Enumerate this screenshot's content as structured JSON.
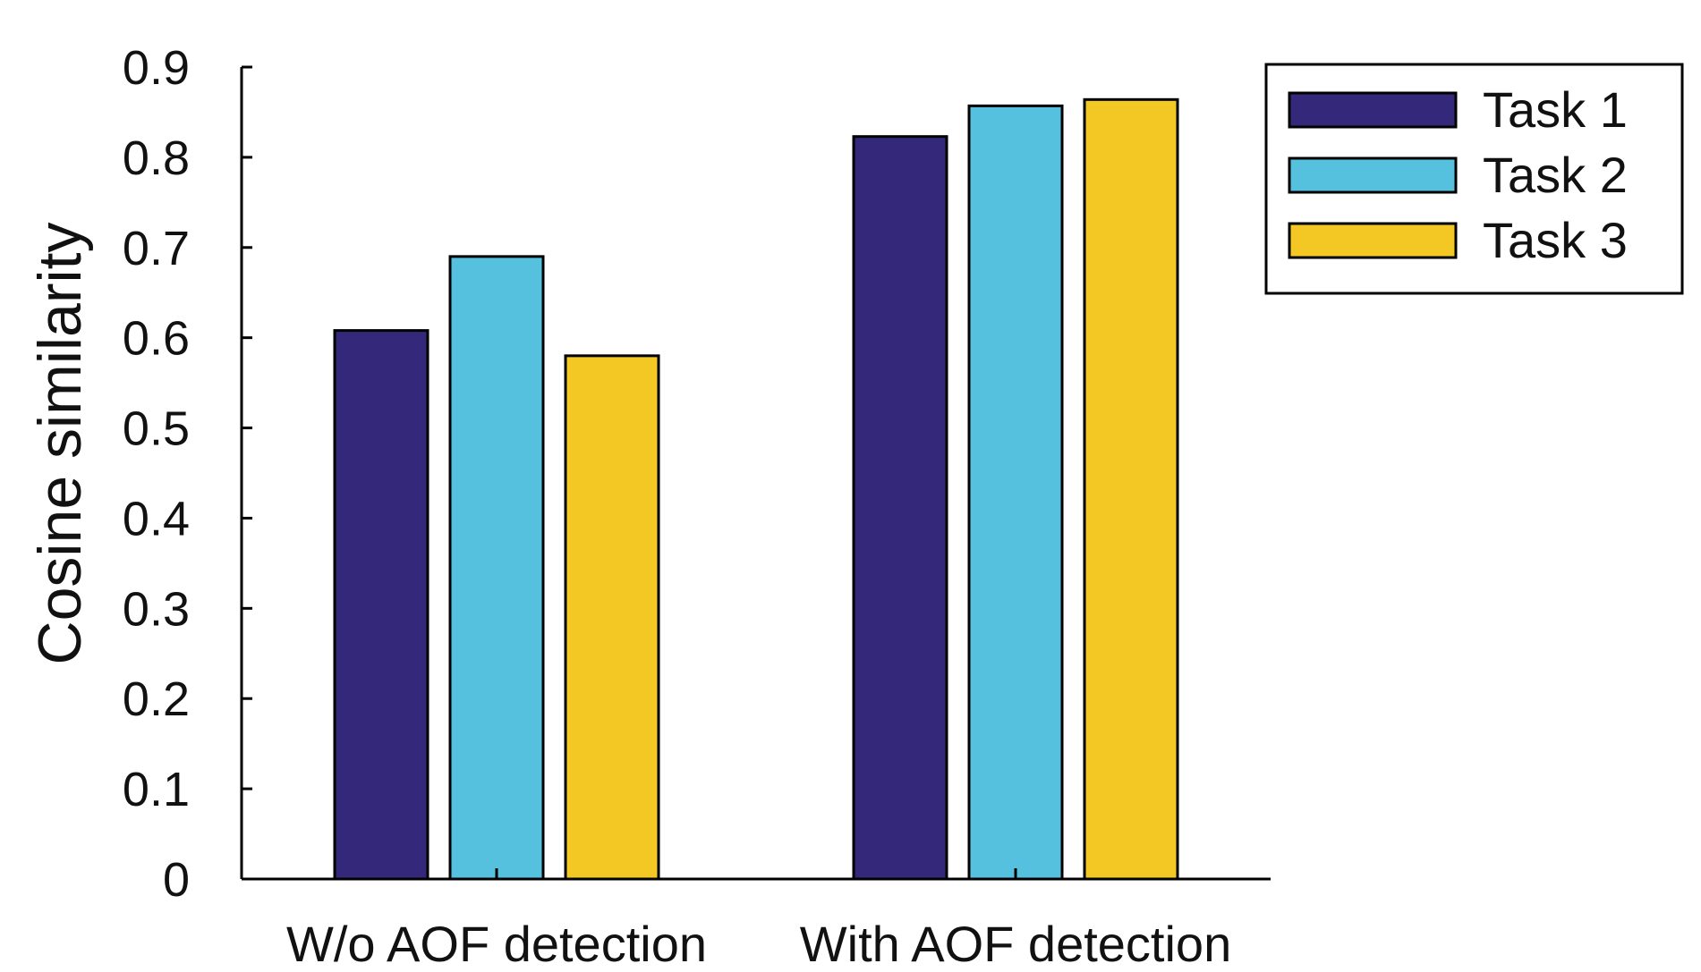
{
  "chart_data": {
    "type": "bar",
    "title": "",
    "xlabel": "",
    "ylabel": "Cosine similarity",
    "ylim": [
      0,
      0.9
    ],
    "yticks": [
      {
        "value": 0,
        "label": "0"
      },
      {
        "value": 0.1,
        "label": "0.1"
      },
      {
        "value": 0.2,
        "label": "0.2"
      },
      {
        "value": 0.3,
        "label": "0.3"
      },
      {
        "value": 0.4,
        "label": "0.4"
      },
      {
        "value": 0.5,
        "label": "0.5"
      },
      {
        "value": 0.6,
        "label": "0.6"
      },
      {
        "value": 0.7,
        "label": "0.7"
      },
      {
        "value": 0.8,
        "label": "0.8"
      },
      {
        "value": 0.9,
        "label": "0.9"
      }
    ],
    "categories": [
      "W/o AOF detection",
      "With AOF detection"
    ],
    "series": [
      {
        "name": "Task 1",
        "color": "#33287a",
        "values": [
          0.608,
          0.823
        ]
      },
      {
        "name": "Task 2",
        "color": "#56c1de",
        "values": [
          0.69,
          0.857
        ]
      },
      {
        "name": "Task 3",
        "color": "#f4c824",
        "values": [
          0.58,
          0.864
        ]
      }
    ],
    "legend_position": "top-right",
    "grid": false
  }
}
